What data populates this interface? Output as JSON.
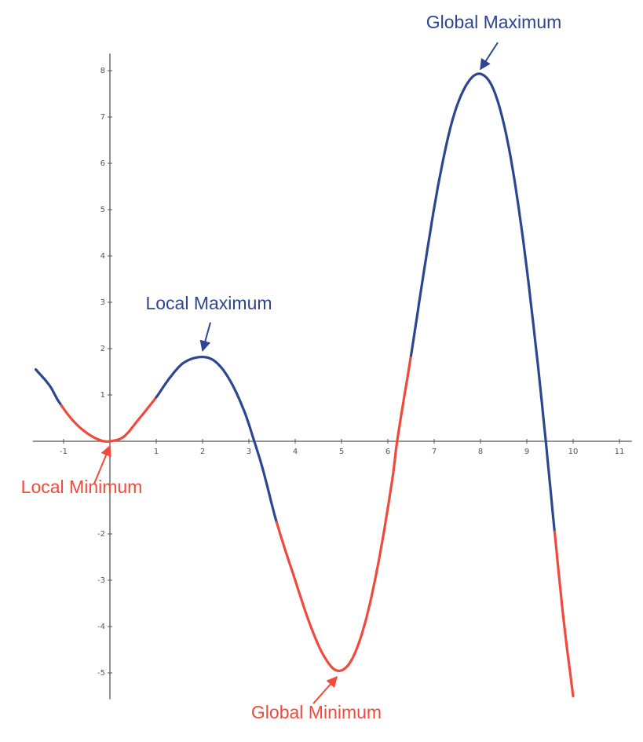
{
  "chart_data": {
    "type": "line",
    "title": "",
    "xlabel": "",
    "ylabel": "",
    "xlim": [
      -1.6,
      11.2
    ],
    "ylim": [
      -5.5,
      8.3
    ],
    "grid": false,
    "legend": "none",
    "x_ticks": [
      -1,
      1,
      2,
      3,
      4,
      5,
      6,
      7,
      8,
      9,
      10,
      11
    ],
    "x_tick_labels": [
      "-1",
      "1",
      "2",
      "3",
      "4",
      "5",
      "6",
      "7",
      "8",
      "9",
      "10",
      "11"
    ],
    "y_ticks": [
      8,
      7,
      6,
      5,
      4,
      3,
      2,
      1,
      -2,
      -3,
      -4,
      -5
    ],
    "y_tick_labels": [
      "8",
      "7",
      "6",
      "5",
      "4",
      "3",
      "2",
      "1",
      "-2",
      "-3",
      "-4",
      "-5"
    ],
    "curve_points": [
      [
        -1.6,
        1.55
      ],
      [
        -1.3,
        1.2
      ],
      [
        -1.1,
        0.85
      ],
      [
        -0.8,
        0.45
      ],
      [
        -0.5,
        0.18
      ],
      [
        -0.2,
        0.02
      ],
      [
        0,
        0
      ],
      [
        0.3,
        0.1
      ],
      [
        0.6,
        0.45
      ],
      [
        1.0,
        0.95
      ],
      [
        1.3,
        1.38
      ],
      [
        1.6,
        1.7
      ],
      [
        2.0,
        1.82
      ],
      [
        2.3,
        1.7
      ],
      [
        2.6,
        1.3
      ],
      [
        2.9,
        0.65
      ],
      [
        3.1,
        0.05
      ],
      [
        3.3,
        -0.6
      ],
      [
        3.6,
        -1.75
      ],
      [
        4.0,
        -3.0
      ],
      [
        4.3,
        -3.9
      ],
      [
        4.6,
        -4.6
      ],
      [
        4.9,
        -4.95
      ],
      [
        5.2,
        -4.75
      ],
      [
        5.5,
        -3.95
      ],
      [
        5.8,
        -2.6
      ],
      [
        6.1,
        -0.8
      ],
      [
        6.2,
        0
      ],
      [
        6.5,
        1.85
      ],
      [
        6.8,
        3.8
      ],
      [
        7.1,
        5.6
      ],
      [
        7.4,
        6.95
      ],
      [
        7.7,
        7.7
      ],
      [
        8.0,
        7.93
      ],
      [
        8.3,
        7.55
      ],
      [
        8.6,
        6.4
      ],
      [
        8.9,
        4.5
      ],
      [
        9.2,
        2.0
      ],
      [
        9.4,
        0.1
      ],
      [
        9.6,
        -1.95
      ],
      [
        9.8,
        -3.9
      ],
      [
        10.0,
        -5.5
      ]
    ],
    "segments": [
      {
        "from": -1.6,
        "to": -1.05,
        "color": "#2e4690"
      },
      {
        "from": -1.05,
        "to": 1.0,
        "color": "#f04a3c"
      },
      {
        "from": 1.0,
        "to": 3.6,
        "color": "#2e4690"
      },
      {
        "from": 3.6,
        "to": 6.5,
        "color": "#f04a3c"
      },
      {
        "from": 6.5,
        "to": 9.6,
        "color": "#2e4690"
      },
      {
        "from": 9.6,
        "to": 10.0,
        "color": "#f04a3c"
      }
    ],
    "colors": {
      "increasing_concave_down": "#2e4690",
      "concave_up": "#f04a3c",
      "axis": "#555555"
    },
    "annotations": [
      {
        "text": "Global Maximum",
        "x": 8.0,
        "y": 7.93,
        "color": "#2e4690"
      },
      {
        "text": "Local Maximum",
        "x": 2.0,
        "y": 1.82,
        "color": "#2e4690"
      },
      {
        "text": "Local Minimum",
        "x": 0.0,
        "y": 0.0,
        "color": "#f04a3c"
      },
      {
        "text": "Global Minimum",
        "x": 4.9,
        "y": -4.95,
        "color": "#f04a3c"
      }
    ]
  }
}
